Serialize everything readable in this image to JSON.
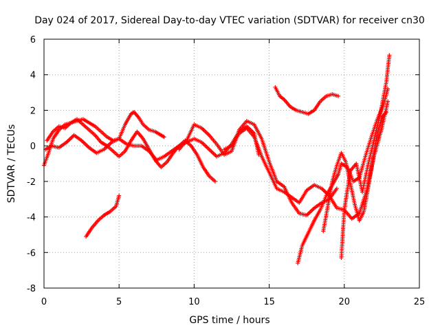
{
  "chart_data": {
    "type": "scatter",
    "title": "Day 024 of 2017, Sidereal Day-to-day VTEC variation (SDTVAR) for receiver cn30",
    "xlabel": "GPS time / hours",
    "ylabel": "SDTVAR / TECUs",
    "xlim": [
      0,
      25
    ],
    "ylim": [
      -8,
      6
    ],
    "xticks": [
      0,
      5,
      10,
      15,
      20,
      25
    ],
    "yticks": [
      -8,
      -6,
      -4,
      -2,
      0,
      2,
      4,
      6
    ],
    "xtick_labels": [
      "0",
      "5",
      "10",
      "15",
      "20",
      "25"
    ],
    "ytick_labels": [
      "-8",
      "-6",
      "-4",
      "-2",
      "0",
      "2",
      "4",
      "6"
    ],
    "grid": true,
    "marker": "+",
    "color": "#ff0000",
    "series": [
      {
        "name": "s1",
        "x": [
          0.0,
          0.3,
          0.6,
          1.0,
          1.4,
          1.8,
          2.2,
          2.6,
          3.0,
          3.4,
          3.8,
          4.2,
          4.6,
          5.0,
          5.4,
          5.8,
          6.0,
          6.3,
          6.6,
          7.0,
          7.4,
          7.8,
          8.0
        ],
        "y": [
          -1.1,
          -0.4,
          0.4,
          0.9,
          1.2,
          1.3,
          1.4,
          1.5,
          1.3,
          1.1,
          0.8,
          0.5,
          0.3,
          0.4,
          1.2,
          1.8,
          1.9,
          1.6,
          1.2,
          0.9,
          0.8,
          0.6,
          0.5
        ]
      },
      {
        "name": "s2",
        "x": [
          0.1,
          0.5,
          1.0,
          1.5,
          2.0,
          2.5,
          3.0,
          3.5,
          4.0,
          4.5,
          5.0,
          5.5,
          6.0,
          6.5,
          7.0,
          7.5,
          8.0,
          8.5,
          9.0,
          9.5,
          10.0,
          10.5,
          11.0,
          11.5,
          12.0,
          12.5,
          13.0,
          13.5,
          14.0,
          14.3
        ],
        "y": [
          -0.2,
          0.0,
          -0.1,
          0.2,
          0.6,
          0.3,
          -0.1,
          -0.4,
          -0.2,
          0.2,
          0.4,
          0.1,
          0.0,
          0.0,
          -0.3,
          -0.8,
          -0.6,
          -0.3,
          0.0,
          0.2,
          0.4,
          0.2,
          -0.2,
          -0.6,
          -0.4,
          0.1,
          0.8,
          1.1,
          0.7,
          -0.5
        ]
      },
      {
        "name": "s3",
        "x": [
          0.2,
          0.6,
          1.0,
          1.4,
          1.8,
          2.2,
          2.6,
          3.0,
          3.4,
          3.8,
          4.2,
          4.6,
          5.0,
          5.4,
          5.8,
          6.2,
          6.6,
          7.0,
          7.4,
          7.8,
          8.2,
          8.6,
          9.0,
          9.4,
          9.8,
          10.2,
          10.6,
          11.0,
          11.4
        ],
        "y": [
          0.3,
          0.8,
          1.1,
          1.0,
          1.3,
          1.5,
          1.2,
          0.9,
          0.6,
          0.2,
          0.0,
          -0.3,
          -0.6,
          -0.3,
          0.3,
          0.8,
          0.4,
          -0.2,
          -0.8,
          -1.2,
          -0.9,
          -0.4,
          0.0,
          0.3,
          0.0,
          -0.5,
          -1.2,
          -1.7,
          -2.0
        ]
      },
      {
        "name": "s4",
        "x": [
          2.8,
          3.2,
          3.6,
          4.0,
          4.4,
          4.8,
          5.0
        ],
        "y": [
          -5.1,
          -4.6,
          -4.2,
          -3.9,
          -3.7,
          -3.4,
          -2.8
        ]
      },
      {
        "name": "s5",
        "x": [
          9.0,
          9.5,
          10.0,
          10.5,
          11.0,
          11.5,
          12.0,
          12.5,
          13.0,
          13.5,
          14.0,
          14.5,
          15.0,
          15.5,
          16.0,
          16.5,
          17.0,
          17.5,
          18.0,
          18.5,
          19.0,
          19.5
        ],
        "y": [
          -0.2,
          0.3,
          1.2,
          1.0,
          0.6,
          0.1,
          -0.5,
          -0.3,
          0.9,
          1.4,
          1.2,
          0.4,
          -0.9,
          -2.0,
          -2.3,
          -3.2,
          -3.8,
          -3.9,
          -3.5,
          -3.2,
          -3.0,
          -2.4
        ]
      },
      {
        "name": "s6",
        "x": [
          12.0,
          12.5,
          13.0,
          13.5,
          14.0,
          14.5,
          15.0,
          15.5,
          16.0,
          16.5,
          17.0,
          17.5,
          18.0,
          18.5,
          19.0,
          19.5,
          20.0,
          20.5,
          21.0,
          21.5,
          22.0,
          22.5,
          22.9
        ],
        "y": [
          -0.2,
          0.0,
          0.7,
          1.0,
          0.5,
          -0.6,
          -1.5,
          -2.4,
          -2.6,
          -2.9,
          -3.2,
          -2.5,
          -2.2,
          -2.4,
          -2.8,
          -3.5,
          -3.6,
          -4.1,
          -3.8,
          -2.5,
          -0.5,
          1.0,
          2.5
        ]
      },
      {
        "name": "s7",
        "x": [
          15.4,
          15.7,
          16.0,
          16.4,
          16.8,
          17.2,
          17.6,
          18.0,
          18.4,
          18.8,
          19.2,
          19.6
        ],
        "y": [
          3.3,
          2.8,
          2.6,
          2.2,
          2.0,
          1.9,
          1.8,
          2.0,
          2.5,
          2.8,
          2.9,
          2.8
        ]
      },
      {
        "name": "s8",
        "x": [
          16.9,
          17.2,
          17.6,
          18.0,
          18.4,
          18.8,
          19.2,
          19.6,
          19.8,
          20.2,
          20.6,
          21.0,
          21.4,
          21.8,
          22.2,
          22.6,
          22.9
        ],
        "y": [
          -6.6,
          -5.6,
          -4.9,
          -4.2,
          -3.6,
          -2.8,
          -2.2,
          -1.6,
          -1.0,
          -1.2,
          -2.0,
          -1.8,
          -0.6,
          0.5,
          1.5,
          2.3,
          3.2
        ]
      },
      {
        "name": "s9",
        "x": [
          19.8,
          20.0,
          20.4,
          20.8,
          21.2,
          21.6,
          22.0,
          22.4,
          22.8,
          23.0
        ],
        "y": [
          -6.3,
          -3.6,
          -1.4,
          -1.0,
          -2.6,
          -1.0,
          0.4,
          1.8,
          3.6,
          5.1
        ]
      },
      {
        "name": "s10",
        "x": [
          18.6,
          18.9,
          19.2,
          19.5,
          19.8,
          20.1,
          20.4,
          20.7,
          21.0,
          21.3,
          21.6,
          21.9,
          22.2,
          22.5,
          22.8
        ],
        "y": [
          -4.8,
          -3.4,
          -2.0,
          -1.1,
          -0.4,
          -0.9,
          -2.1,
          -3.3,
          -4.2,
          -3.7,
          -2.3,
          -0.8,
          0.7,
          1.6,
          1.9
        ]
      }
    ]
  }
}
